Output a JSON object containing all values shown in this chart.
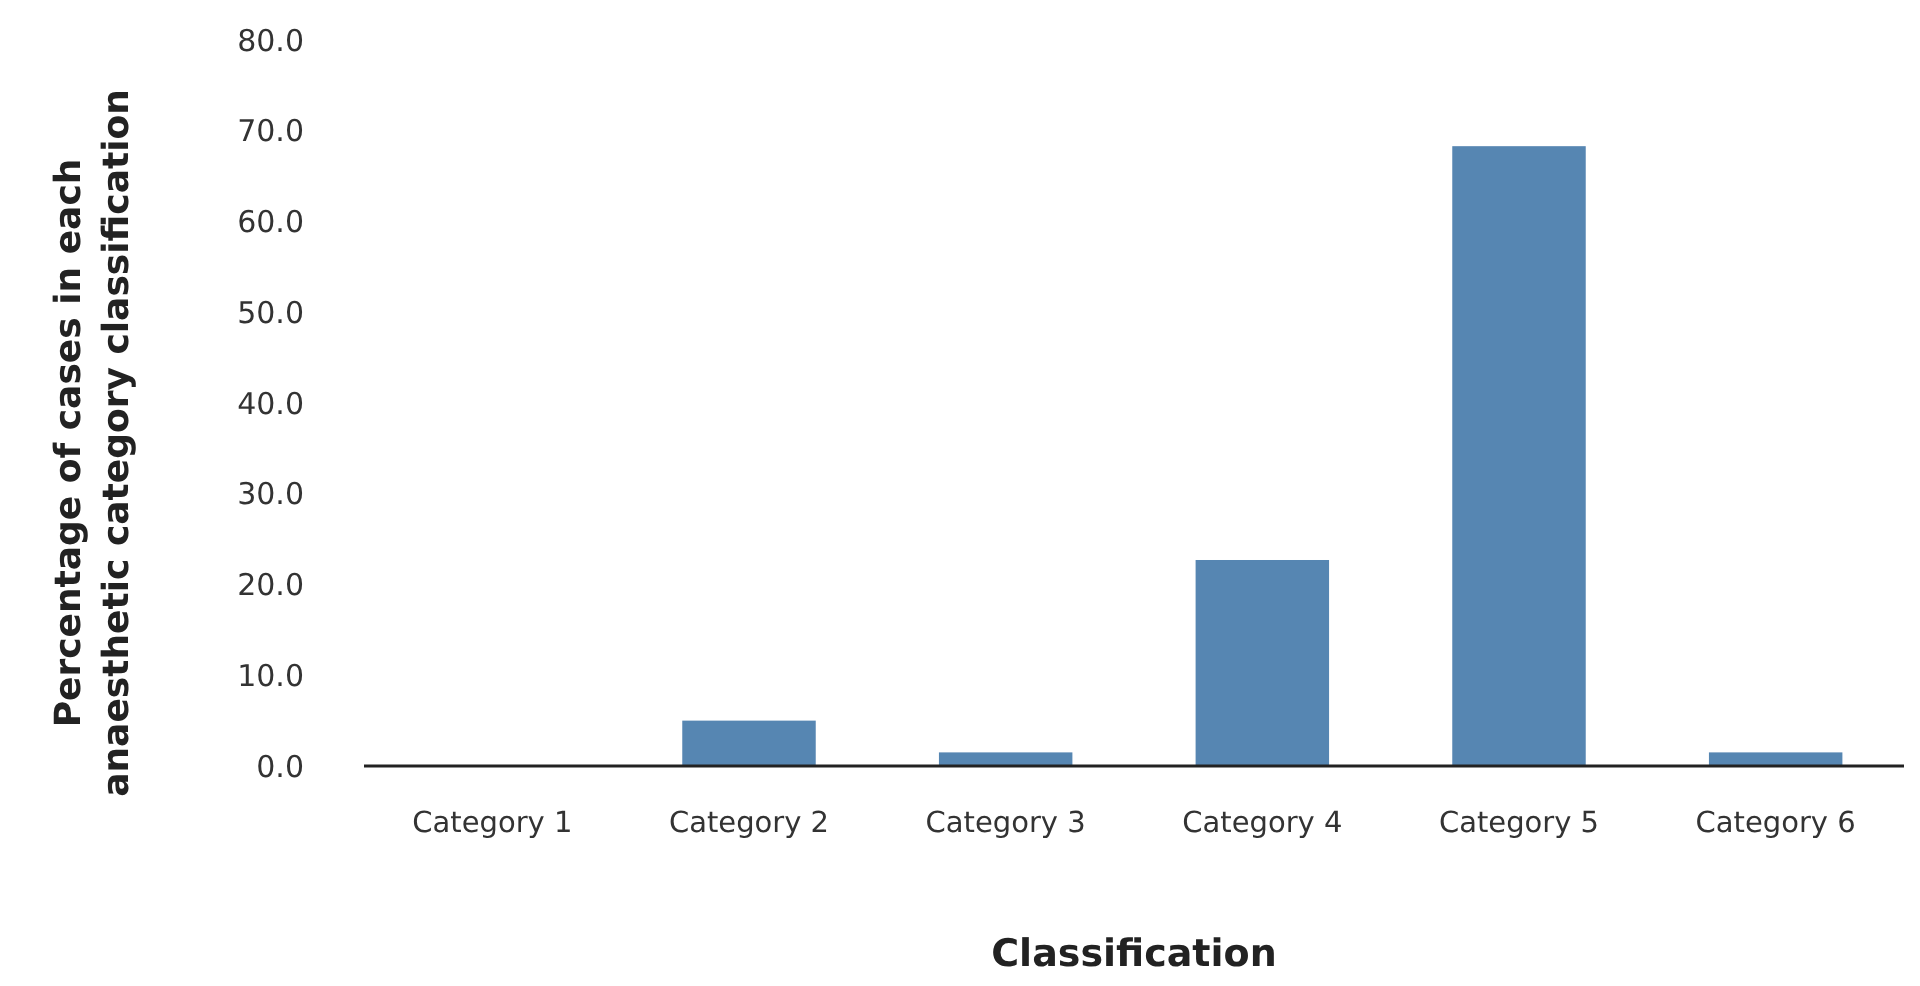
{
  "chart_data": {
    "type": "bar",
    "xlabel": "Classification",
    "ylabel": "Percentage of cases in each anaesthetic category classification",
    "categories": [
      "Category 1",
      "Category 2",
      "Category 3",
      "Category 4",
      "Category 5",
      "Category 6"
    ],
    "values": [
      0,
      5.0,
      1.5,
      22.7,
      68.3,
      1.5
    ],
    "color": "#5686b2",
    "ylim": [
      0,
      80
    ],
    "yticks": [
      {
        "value": 0,
        "label": "0.0"
      },
      {
        "value": 10,
        "label": "10.0"
      },
      {
        "value": 20,
        "label": "20.0"
      },
      {
        "value": 30,
        "label": "30.0"
      },
      {
        "value": 40,
        "label": "40.0"
      },
      {
        "value": 50,
        "label": "50.0"
      },
      {
        "value": 60,
        "label": "60.0"
      },
      {
        "value": 70,
        "label": "70.0"
      },
      {
        "value": 80,
        "label": "80.0"
      }
    ],
    "grid": false
  }
}
